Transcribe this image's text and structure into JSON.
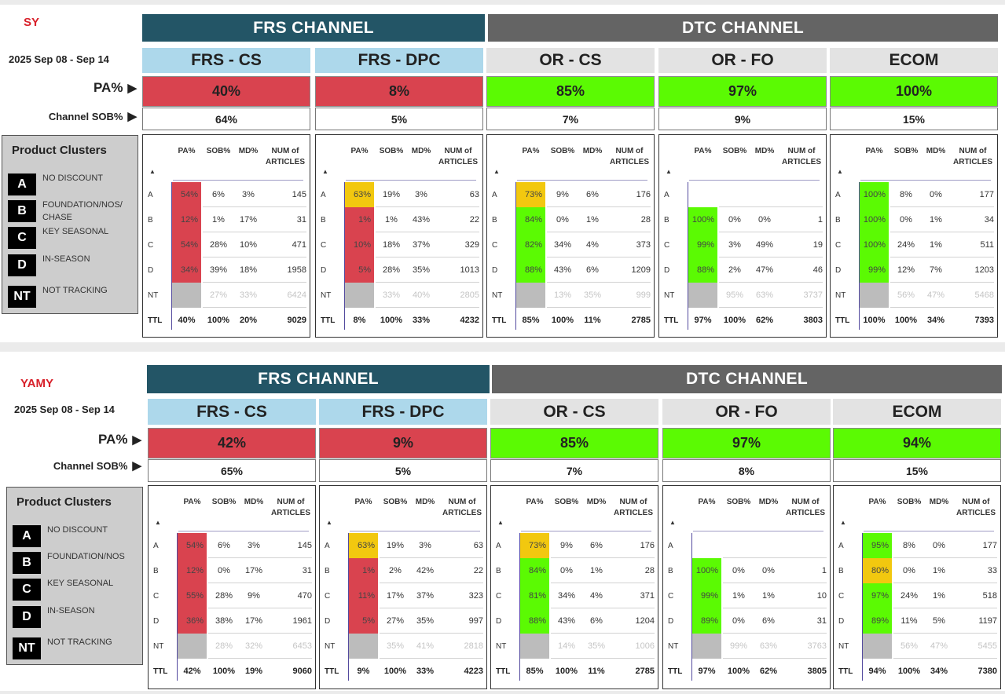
{
  "labels": {
    "pa": "PA%",
    "sob": "Channel SOB%",
    "clusters": "Product Clusters"
  },
  "colors": {
    "red": "#d9434f",
    "yellow": "#f2c80f",
    "green": "#5bfa03",
    "grey": "#bcbcbc",
    "frs_header": "#235566",
    "dtc_header": "#646464"
  },
  "sections": [
    {
      "name": "SY",
      "date": "2025 Sep 08 - Sep 14",
      "channels": [
        "FRS CHANNEL",
        "DTC CHANNEL"
      ],
      "legend": [
        {
          "code": "A",
          "text": "NO DISCOUNT"
        },
        {
          "code": "B",
          "text": "FOUNDATION/NOS/ CHASE"
        },
        {
          "code": "C",
          "text": "KEY SEASONAL"
        },
        {
          "code": "D",
          "text": "IN-SEASON"
        },
        {
          "code": "NT",
          "text": "NOT TRACKING"
        }
      ],
      "panels": [
        {
          "title": "FRS - CS",
          "pa": "40%",
          "pa_color": "red",
          "sob": "64%",
          "headers": [
            "PA%",
            "SOB%",
            "MD%",
            "NUM of ARTICLES"
          ],
          "rows": [
            {
              "k": "A",
              "pa": "54%",
              "c": "red",
              "sob": "6%",
              "md": "3%",
              "num": "145"
            },
            {
              "k": "B",
              "pa": "12%",
              "c": "red",
              "sob": "1%",
              "md": "17%",
              "num": "31"
            },
            {
              "k": "C",
              "pa": "54%",
              "c": "red",
              "sob": "28%",
              "md": "10%",
              "num": "471"
            },
            {
              "k": "D",
              "pa": "34%",
              "c": "red",
              "sob": "39%",
              "md": "18%",
              "num": "1958"
            },
            {
              "k": "NT",
              "pa": "",
              "c": "grey",
              "sob": "27%",
              "md": "33%",
              "num": "6424"
            }
          ],
          "total": {
            "k": "TTL",
            "pa": "40%",
            "sob": "100%",
            "md": "20%",
            "num": "9029"
          }
        },
        {
          "title": "FRS - DPC",
          "pa": "8%",
          "pa_color": "red",
          "sob": "5%",
          "headers": [
            "PA%",
            "SOB%",
            "MD%",
            "NUM of ARTICLES"
          ],
          "rows": [
            {
              "k": "A",
              "pa": "63%",
              "c": "yellow",
              "sob": "19%",
              "md": "3%",
              "num": "63"
            },
            {
              "k": "B",
              "pa": "1%",
              "c": "red",
              "sob": "1%",
              "md": "43%",
              "num": "22"
            },
            {
              "k": "C",
              "pa": "10%",
              "c": "red",
              "sob": "18%",
              "md": "37%",
              "num": "329"
            },
            {
              "k": "D",
              "pa": "5%",
              "c": "red",
              "sob": "28%",
              "md": "35%",
              "num": "1013"
            },
            {
              "k": "NT",
              "pa": "",
              "c": "grey",
              "sob": "33%",
              "md": "40%",
              "num": "2805"
            }
          ],
          "total": {
            "k": "TTL",
            "pa": "8%",
            "sob": "100%",
            "md": "33%",
            "num": "4232"
          }
        },
        {
          "title": "OR - CS",
          "pa": "85%",
          "pa_color": "green",
          "sob": "7%",
          "headers": [
            "PA%",
            "SOB%",
            "MD%",
            "NUM of ARTICLES"
          ],
          "rows": [
            {
              "k": "A",
              "pa": "73%",
              "c": "yellow",
              "sob": "9%",
              "md": "6%",
              "num": "176"
            },
            {
              "k": "B",
              "pa": "84%",
              "c": "green",
              "sob": "0%",
              "md": "1%",
              "num": "28"
            },
            {
              "k": "C",
              "pa": "82%",
              "c": "green",
              "sob": "34%",
              "md": "4%",
              "num": "373"
            },
            {
              "k": "D",
              "pa": "88%",
              "c": "green",
              "sob": "43%",
              "md": "6%",
              "num": "1209"
            },
            {
              "k": "NT",
              "pa": "",
              "c": "grey",
              "sob": "13%",
              "md": "35%",
              "num": "999"
            }
          ],
          "total": {
            "k": "TTL",
            "pa": "85%",
            "sob": "100%",
            "md": "11%",
            "num": "2785"
          }
        },
        {
          "title": "OR - FO",
          "pa": "97%",
          "pa_color": "green",
          "sob": "9%",
          "headers": [
            "PA%",
            "SOB%",
            "MD%",
            "NUM of ARTICLES"
          ],
          "rows": [
            {
              "k": "A",
              "pa": "",
              "c": "none",
              "sob": "",
              "md": "",
              "num": ""
            },
            {
              "k": "B",
              "pa": "100%",
              "c": "green",
              "sob": "0%",
              "md": "0%",
              "num": "1"
            },
            {
              "k": "C",
              "pa": "99%",
              "c": "green",
              "sob": "3%",
              "md": "49%",
              "num": "19"
            },
            {
              "k": "D",
              "pa": "88%",
              "c": "green",
              "sob": "2%",
              "md": "47%",
              "num": "46"
            },
            {
              "k": "NT",
              "pa": "",
              "c": "grey",
              "sob": "95%",
              "md": "63%",
              "num": "3737"
            }
          ],
          "total": {
            "k": "TTL",
            "pa": "97%",
            "sob": "100%",
            "md": "62%",
            "num": "3803"
          }
        },
        {
          "title": "ECOM",
          "pa": "100%",
          "pa_color": "green",
          "sob": "15%",
          "headers": [
            "PA%",
            "SOB%",
            "MD%",
            "NUM of ARTICLES"
          ],
          "rows": [
            {
              "k": "A",
              "pa": "100%",
              "c": "green",
              "sob": "8%",
              "md": "0%",
              "num": "177"
            },
            {
              "k": "B",
              "pa": "100%",
              "c": "green",
              "sob": "0%",
              "md": "1%",
              "num": "34"
            },
            {
              "k": "C",
              "pa": "100%",
              "c": "green",
              "sob": "24%",
              "md": "1%",
              "num": "511"
            },
            {
              "k": "D",
              "pa": "99%",
              "c": "green",
              "sob": "12%",
              "md": "7%",
              "num": "1203"
            },
            {
              "k": "NT",
              "pa": "",
              "c": "grey",
              "sob": "56%",
              "md": "47%",
              "num": "5468"
            }
          ],
          "total": {
            "k": "TTL",
            "pa": "100%",
            "sob": "100%",
            "md": "34%",
            "num": "7393"
          }
        }
      ]
    },
    {
      "name": "YAMY",
      "date": "2025 Sep 08 - Sep 14",
      "channels": [
        "FRS CHANNEL",
        "DTC CHANNEL"
      ],
      "legend": [
        {
          "code": "A",
          "text": "NO DISCOUNT"
        },
        {
          "code": "B",
          "text": "FOUNDATION/NOS"
        },
        {
          "code": "C",
          "text": "KEY SEASONAL"
        },
        {
          "code": "D",
          "text": "IN-SEASON"
        },
        {
          "code": "NT",
          "text": "NOT TRACKING"
        }
      ],
      "panels": [
        {
          "title": "FRS - CS",
          "pa": "42%",
          "pa_color": "red",
          "sob": "65%",
          "headers": [
            "PA%",
            "SOB%",
            "MD%",
            "NUM of ARTICLES"
          ],
          "rows": [
            {
              "k": "A",
              "pa": "54%",
              "c": "red",
              "sob": "6%",
              "md": "3%",
              "num": "145"
            },
            {
              "k": "B",
              "pa": "12%",
              "c": "red",
              "sob": "0%",
              "md": "17%",
              "num": "31"
            },
            {
              "k": "C",
              "pa": "55%",
              "c": "red",
              "sob": "28%",
              "md": "9%",
              "num": "470"
            },
            {
              "k": "D",
              "pa": "36%",
              "c": "red",
              "sob": "38%",
              "md": "17%",
              "num": "1961"
            },
            {
              "k": "NT",
              "pa": "",
              "c": "grey",
              "sob": "28%",
              "md": "32%",
              "num": "6453"
            }
          ],
          "total": {
            "k": "TTL",
            "pa": "42%",
            "sob": "100%",
            "md": "19%",
            "num": "9060"
          }
        },
        {
          "title": "FRS - DPC",
          "pa": "9%",
          "pa_color": "red",
          "sob": "5%",
          "headers": [
            "PA%",
            "SOB%",
            "MD%",
            "NUM of ARTICLES"
          ],
          "rows": [
            {
              "k": "A",
              "pa": "63%",
              "c": "yellow",
              "sob": "19%",
              "md": "3%",
              "num": "63"
            },
            {
              "k": "B",
              "pa": "1%",
              "c": "red",
              "sob": "2%",
              "md": "42%",
              "num": "22"
            },
            {
              "k": "C",
              "pa": "11%",
              "c": "red",
              "sob": "17%",
              "md": "37%",
              "num": "323"
            },
            {
              "k": "D",
              "pa": "5%",
              "c": "red",
              "sob": "27%",
              "md": "35%",
              "num": "997"
            },
            {
              "k": "NT",
              "pa": "",
              "c": "grey",
              "sob": "35%",
              "md": "41%",
              "num": "2818"
            }
          ],
          "total": {
            "k": "TTL",
            "pa": "9%",
            "sob": "100%",
            "md": "33%",
            "num": "4223"
          }
        },
        {
          "title": "OR - CS",
          "pa": "85%",
          "pa_color": "green",
          "sob": "7%",
          "headers": [
            "PA%",
            "SOB%",
            "MD%",
            "NUM of ARTICLES"
          ],
          "rows": [
            {
              "k": "A",
              "pa": "73%",
              "c": "yellow",
              "sob": "9%",
              "md": "6%",
              "num": "176"
            },
            {
              "k": "B",
              "pa": "84%",
              "c": "green",
              "sob": "0%",
              "md": "1%",
              "num": "28"
            },
            {
              "k": "C",
              "pa": "81%",
              "c": "green",
              "sob": "34%",
              "md": "4%",
              "num": "371"
            },
            {
              "k": "D",
              "pa": "88%",
              "c": "green",
              "sob": "43%",
              "md": "6%",
              "num": "1204"
            },
            {
              "k": "NT",
              "pa": "",
              "c": "grey",
              "sob": "14%",
              "md": "35%",
              "num": "1006"
            }
          ],
          "total": {
            "k": "TTL",
            "pa": "85%",
            "sob": "100%",
            "md": "11%",
            "num": "2785"
          }
        },
        {
          "title": "OR - FO",
          "pa": "97%",
          "pa_color": "green",
          "sob": "8%",
          "headers": [
            "PA%",
            "SOB%",
            "MD%",
            "NUM of ARTICLES"
          ],
          "rows": [
            {
              "k": "A",
              "pa": "",
              "c": "none",
              "sob": "",
              "md": "",
              "num": ""
            },
            {
              "k": "B",
              "pa": "100%",
              "c": "green",
              "sob": "0%",
              "md": "0%",
              "num": "1"
            },
            {
              "k": "C",
              "pa": "99%",
              "c": "green",
              "sob": "1%",
              "md": "1%",
              "num": "10"
            },
            {
              "k": "D",
              "pa": "89%",
              "c": "green",
              "sob": "0%",
              "md": "6%",
              "num": "31"
            },
            {
              "k": "NT",
              "pa": "",
              "c": "grey",
              "sob": "99%",
              "md": "63%",
              "num": "3763"
            }
          ],
          "total": {
            "k": "TTL",
            "pa": "97%",
            "sob": "100%",
            "md": "62%",
            "num": "3805"
          }
        },
        {
          "title": "ECOM",
          "pa": "94%",
          "pa_color": "green",
          "sob": "15%",
          "headers": [
            "PA%",
            "SOB%",
            "MD%",
            "NUM of ARTICLES"
          ],
          "rows": [
            {
              "k": "A",
              "pa": "95%",
              "c": "green",
              "sob": "8%",
              "md": "0%",
              "num": "177"
            },
            {
              "k": "B",
              "pa": "80%",
              "c": "yellow",
              "sob": "0%",
              "md": "1%",
              "num": "33"
            },
            {
              "k": "C",
              "pa": "97%",
              "c": "green",
              "sob": "24%",
              "md": "1%",
              "num": "518"
            },
            {
              "k": "D",
              "pa": "89%",
              "c": "green",
              "sob": "11%",
              "md": "5%",
              "num": "1197"
            },
            {
              "k": "NT",
              "pa": "",
              "c": "grey",
              "sob": "56%",
              "md": "47%",
              "num": "5455"
            }
          ],
          "total": {
            "k": "TTL",
            "pa": "94%",
            "sob": "100%",
            "md": "34%",
            "num": "7380"
          }
        }
      ]
    }
  ]
}
